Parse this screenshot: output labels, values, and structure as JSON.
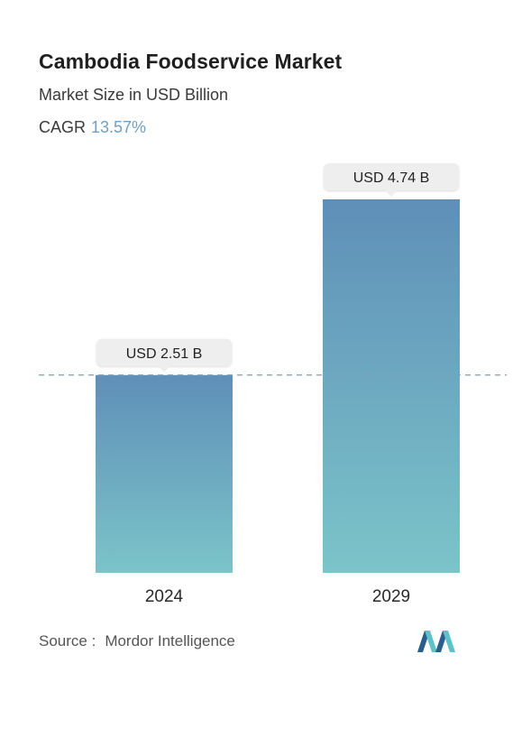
{
  "title": "Cambodia Foodservice Market",
  "subtitle": "Market Size in USD Billion",
  "cagr": {
    "label": "CAGR",
    "value": "13.57%"
  },
  "source": {
    "label": "Source :",
    "name": "Mordor Intelligence"
  },
  "colors": {
    "bar_top": "#5f8fb8",
    "bar_bottom": "#7bc4c9",
    "dashed_line": "#7aa0c4",
    "cagr_value": "#6f9fc4",
    "label_pill": "#eeeeee"
  },
  "chart_data": {
    "type": "bar",
    "categories": [
      "2024",
      "2029"
    ],
    "values": [
      2.51,
      4.74
    ],
    "data_labels": [
      "USD 2.51 B",
      "USD 4.74 B"
    ],
    "ylim": [
      0,
      4.74
    ],
    "reference_line": 2.51,
    "grid": false,
    "legend": "none"
  }
}
